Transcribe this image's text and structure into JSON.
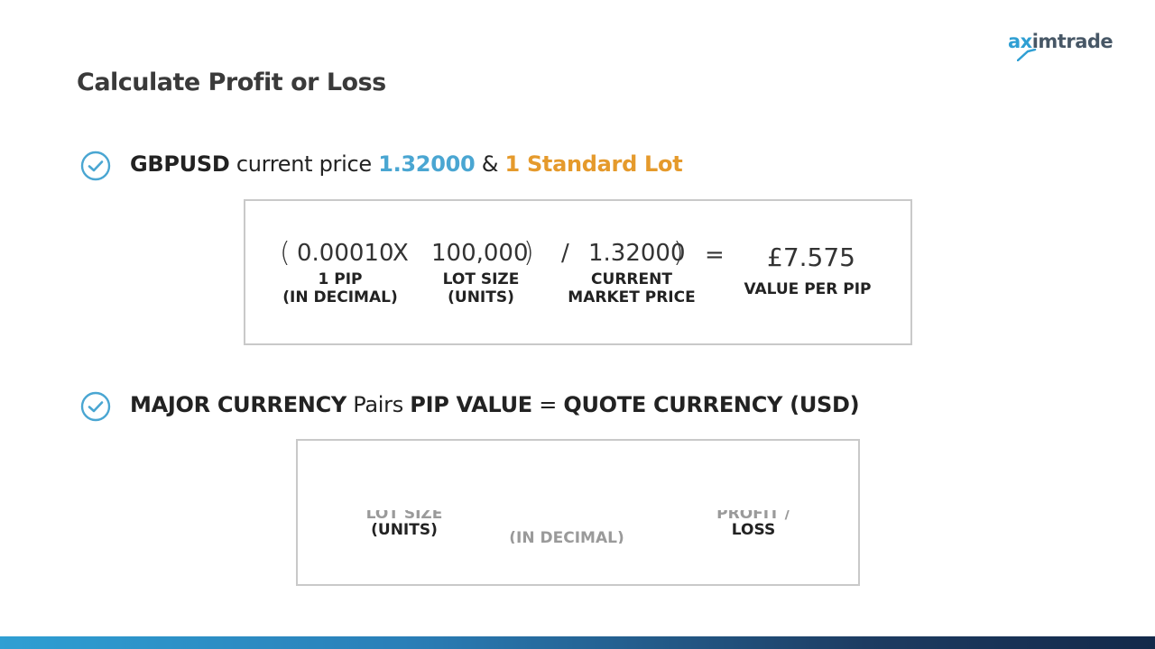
{
  "logo": {
    "text_ax": "ax",
    "text_rest": "imtrade"
  },
  "title": "Calculate Profit or Loss",
  "bullet1": {
    "pair": "GBPUSD",
    "mid": " current price ",
    "price": "1.32000",
    "amp": " & ",
    "lot": "1 Standard Lot"
  },
  "formula1": {
    "open_paren": "(",
    "pip_value": "0.00010",
    "times": "X",
    "lot_value": "100,000",
    "close_paren": ")",
    "divide": "/",
    "price_value": "1.32000",
    "close_paren2": ")",
    "equals": "=",
    "result": "£7.575",
    "pip_label_1": "1 PIP",
    "pip_label_2": "(IN DECIMAL)",
    "lot_label_1": "LOT SIZE",
    "lot_label_2": "(UNITS)",
    "price_label_1": "CURRENT",
    "price_label_2": "MARKET PRICE",
    "result_label": "VALUE PER PIP"
  },
  "bullet2": {
    "p1": "MAJOR CURRENCY",
    "p2": " Pairs ",
    "p3": "PIP VALUE",
    "p4": " = ",
    "p5": "QUOTE CURRENCY (USD)"
  },
  "formula2": {
    "lot_label_1": "LOT SIZE",
    "lot_label_2": "(UNITS)",
    "decimal_label": "(IN DECIMAL)",
    "profit_label_1": "PROFIT /",
    "profit_label_2": "LOSS"
  },
  "colors": {
    "accent_blue": "#4aa6d2",
    "accent_orange": "#e59a2c",
    "text_dark": "#222222"
  }
}
